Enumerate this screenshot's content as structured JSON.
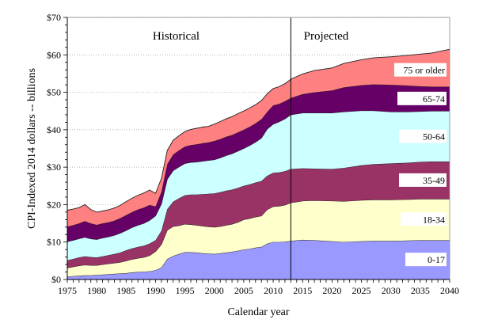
{
  "chart_data": {
    "type": "area",
    "stacked": true,
    "title": "",
    "xlabel": "Calendar year",
    "ylabel": "CPI-Indexed 2014 dollars -- billions",
    "xlim": [
      1975,
      2040
    ],
    "ylim": [
      0,
      70
    ],
    "x_ticks": [
      "1975",
      "1980",
      "1985",
      "1990",
      "1995",
      "2000",
      "2005",
      "2010",
      "2015",
      "2020",
      "2025",
      "2030",
      "2035",
      "2040"
    ],
    "y_ticks": [
      "$0",
      "$10",
      "$20",
      "$30",
      "$40",
      "$50",
      "$60",
      "$70"
    ],
    "y_tick_values": [
      0,
      10,
      20,
      30,
      40,
      50,
      60,
      70
    ],
    "grid": "horizontal-dotted",
    "divider_year": 2013,
    "period_labels": {
      "historical": "Historical",
      "projected": "Projected"
    },
    "x": [
      1975,
      1976,
      1977,
      1978,
      1979,
      1980,
      1981,
      1982,
      1983,
      1984,
      1985,
      1986,
      1987,
      1988,
      1989,
      1990,
      1991,
      1992,
      1993,
      1994,
      1995,
      1996,
      1997,
      1998,
      1999,
      2000,
      2001,
      2002,
      2003,
      2004,
      2005,
      2006,
      2007,
      2008,
      2009,
      2010,
      2011,
      2012,
      2013,
      2015,
      2017,
      2020,
      2022,
      2025,
      2027,
      2030,
      2033,
      2035,
      2037,
      2040
    ],
    "series": [
      {
        "name": "0-17",
        "color": "#9999ff",
        "values": [
          0.8,
          0.9,
          1.0,
          1.1,
          1.1,
          1.2,
          1.3,
          1.4,
          1.5,
          1.6,
          1.7,
          1.9,
          2.0,
          2.1,
          2.2,
          2.5,
          3.2,
          5.5,
          6.3,
          6.8,
          7.3,
          7.3,
          7.2,
          7.0,
          6.9,
          6.8,
          7.0,
          7.2,
          7.4,
          7.7,
          8.0,
          8.2,
          8.5,
          8.7,
          9.6,
          10.0,
          10.0,
          10.1,
          10.3,
          10.6,
          10.5,
          10.2,
          10.0,
          10.2,
          10.3,
          10.3,
          10.4,
          10.5,
          10.5,
          10.5
        ]
      },
      {
        "name": "18-34",
        "color": "#ffffcc",
        "values": [
          2.3,
          2.5,
          2.7,
          2.8,
          2.7,
          2.6,
          2.7,
          2.8,
          2.9,
          3.0,
          3.3,
          3.5,
          3.7,
          3.8,
          4.2,
          5.0,
          6.2,
          7.7,
          7.9,
          7.6,
          7.5,
          7.4,
          7.3,
          7.3,
          7.2,
          7.2,
          7.2,
          7.3,
          7.4,
          7.6,
          8.0,
          8.1,
          8.2,
          8.3,
          9.1,
          9.5,
          9.6,
          9.8,
          10.2,
          10.4,
          10.6,
          10.8,
          10.9,
          11.0,
          11.0,
          11.0,
          11.0,
          11.0,
          11.0,
          11.0
        ]
      },
      {
        "name": "35-49",
        "color": "#993366",
        "values": [
          2.0,
          2.1,
          2.2,
          2.3,
          2.2,
          2.1,
          2.2,
          2.3,
          2.4,
          2.6,
          2.8,
          2.9,
          3.0,
          3.1,
          3.2,
          3.0,
          3.6,
          5.6,
          6.6,
          7.3,
          7.7,
          8.0,
          8.2,
          8.5,
          8.8,
          9.0,
          9.1,
          9.2,
          9.2,
          9.2,
          9.0,
          9.1,
          9.2,
          9.3,
          9.0,
          9.0,
          9.0,
          9.0,
          9.0,
          8.7,
          8.5,
          8.5,
          8.9,
          9.3,
          9.5,
          9.7,
          9.8,
          9.9,
          10.0,
          10.0
        ]
      },
      {
        "name": "50-64",
        "color": "#ccffff",
        "values": [
          5.0,
          5.0,
          5.0,
          5.1,
          4.9,
          4.8,
          4.9,
          4.9,
          5.0,
          5.2,
          5.3,
          5.6,
          5.8,
          6.0,
          6.2,
          6.5,
          7.2,
          8.0,
          8.3,
          8.4,
          8.5,
          8.6,
          8.7,
          8.8,
          8.9,
          9.0,
          9.2,
          9.4,
          9.6,
          9.8,
          10.0,
          10.4,
          10.8,
          11.5,
          12.5,
          13.0,
          13.5,
          14.0,
          14.5,
          14.8,
          14.9,
          15.0,
          15.0,
          14.6,
          14.3,
          13.8,
          13.6,
          13.5,
          13.5,
          13.5
        ]
      },
      {
        "name": "65-74",
        "color": "#660066",
        "values": [
          4.0,
          4.0,
          4.1,
          4.3,
          4.1,
          3.9,
          3.9,
          3.9,
          3.9,
          4.0,
          4.1,
          4.1,
          4.2,
          4.2,
          4.1,
          2.5,
          3.2,
          4.0,
          4.3,
          4.4,
          4.5,
          4.6,
          4.7,
          4.8,
          4.8,
          5.0,
          5.0,
          5.0,
          5.0,
          5.0,
          5.0,
          5.0,
          5.0,
          5.0,
          4.6,
          5.0,
          4.8,
          4.7,
          4.5,
          5.0,
          5.5,
          6.0,
          6.5,
          6.8,
          7.0,
          7.2,
          7.0,
          6.7,
          6.5,
          6.5
        ]
      },
      {
        "name": "75 or older",
        "color": "#ff8080",
        "values": [
          4.4,
          4.3,
          4.2,
          4.4,
          3.7,
          3.4,
          3.3,
          3.3,
          3.4,
          3.4,
          3.6,
          3.7,
          3.8,
          3.9,
          4.0,
          3.5,
          3.6,
          3.7,
          3.8,
          3.9,
          4.0,
          4.2,
          4.3,
          4.3,
          4.3,
          4.5,
          4.7,
          4.8,
          4.9,
          5.0,
          5.0,
          5.0,
          5.0,
          5.0,
          4.8,
          4.5,
          4.6,
          4.7,
          5.0,
          5.4,
          5.8,
          6.0,
          6.4,
          6.8,
          7.1,
          7.5,
          8.1,
          8.6,
          9.0,
          10.0
        ]
      }
    ]
  },
  "band_labels": [
    "0-17",
    "18-34",
    "35-49",
    "50-64",
    "65-74",
    "75 or older"
  ]
}
